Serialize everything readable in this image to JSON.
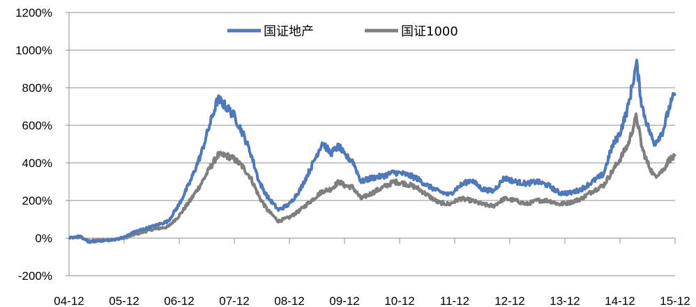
{
  "chart_data": {
    "type": "line",
    "title": "",
    "xlabel": "",
    "ylabel": "",
    "ylim": [
      -200,
      1200
    ],
    "y_ticks": [
      -200,
      0,
      200,
      400,
      600,
      800,
      1000,
      1200
    ],
    "y_tick_labels": [
      "-200%",
      "0%",
      "200%",
      "400%",
      "600%",
      "800%",
      "1000%",
      "1200%"
    ],
    "x_range": [
      0,
      11
    ],
    "x_tick_labels": [
      "04-12",
      "05-12",
      "06-12",
      "07-12",
      "08-12",
      "09-12",
      "10-12",
      "11-12",
      "12-12",
      "13-12",
      "14-12",
      "15-12"
    ],
    "grid": "horizontal",
    "legend_position": "top-center",
    "series": [
      {
        "name": "国证地产",
        "color": "#4F79B8",
        "points": [
          [
            0,
            0
          ],
          [
            0.2,
            10
          ],
          [
            0.35,
            -20
          ],
          [
            0.55,
            -15
          ],
          [
            0.8,
            -10
          ],
          [
            1.0,
            5
          ],
          [
            1.2,
            35
          ],
          [
            1.5,
            60
          ],
          [
            1.8,
            90
          ],
          [
            2.0,
            180
          ],
          [
            2.2,
            300
          ],
          [
            2.4,
            450
          ],
          [
            2.55,
            600
          ],
          [
            2.7,
            740
          ],
          [
            2.85,
            700
          ],
          [
            3.0,
            650
          ],
          [
            3.15,
            560
          ],
          [
            3.3,
            450
          ],
          [
            3.45,
            300
          ],
          [
            3.6,
            220
          ],
          [
            3.8,
            150
          ],
          [
            4.0,
            180
          ],
          [
            4.2,
            260
          ],
          [
            4.4,
            380
          ],
          [
            4.6,
            510
          ],
          [
            4.75,
            450
          ],
          [
            4.9,
            490
          ],
          [
            5.0,
            440
          ],
          [
            5.15,
            410
          ],
          [
            5.3,
            300
          ],
          [
            5.5,
            320
          ],
          [
            5.7,
            330
          ],
          [
            5.9,
            350
          ],
          [
            6.1,
            340
          ],
          [
            6.3,
            320
          ],
          [
            6.5,
            280
          ],
          [
            6.7,
            250
          ],
          [
            6.9,
            230
          ],
          [
            7.1,
            280
          ],
          [
            7.3,
            310
          ],
          [
            7.5,
            260
          ],
          [
            7.7,
            250
          ],
          [
            7.9,
            320
          ],
          [
            8.1,
            300
          ],
          [
            8.3,
            290
          ],
          [
            8.5,
            300
          ],
          [
            8.7,
            280
          ],
          [
            8.9,
            240
          ],
          [
            9.1,
            240
          ],
          [
            9.3,
            260
          ],
          [
            9.5,
            300
          ],
          [
            9.7,
            340
          ],
          [
            9.85,
            480
          ],
          [
            10.0,
            560
          ],
          [
            10.15,
            700
          ],
          [
            10.3,
            930
          ],
          [
            10.4,
            700
          ],
          [
            10.5,
            600
          ],
          [
            10.62,
            500
          ],
          [
            10.78,
            570
          ],
          [
            10.9,
            700
          ],
          [
            11.0,
            770
          ]
        ]
      },
      {
        "name": "国证1000",
        "color": "#7F7F7F",
        "points": [
          [
            0,
            0
          ],
          [
            0.2,
            5
          ],
          [
            0.35,
            -15
          ],
          [
            0.55,
            -12
          ],
          [
            0.8,
            -8
          ],
          [
            1.0,
            0
          ],
          [
            1.2,
            20
          ],
          [
            1.5,
            45
          ],
          [
            1.8,
            60
          ],
          [
            2.0,
            120
          ],
          [
            2.2,
            200
          ],
          [
            2.4,
            290
          ],
          [
            2.55,
            370
          ],
          [
            2.7,
            440
          ],
          [
            2.85,
            440
          ],
          [
            3.0,
            420
          ],
          [
            3.15,
            380
          ],
          [
            3.3,
            320
          ],
          [
            3.45,
            220
          ],
          [
            3.6,
            150
          ],
          [
            3.8,
            90
          ],
          [
            4.0,
            110
          ],
          [
            4.2,
            150
          ],
          [
            4.4,
            200
          ],
          [
            4.6,
            250
          ],
          [
            4.75,
            260
          ],
          [
            4.9,
            300
          ],
          [
            5.0,
            280
          ],
          [
            5.15,
            270
          ],
          [
            5.3,
            210
          ],
          [
            5.5,
            240
          ],
          [
            5.7,
            270
          ],
          [
            5.9,
            300
          ],
          [
            6.1,
            290
          ],
          [
            6.3,
            270
          ],
          [
            6.5,
            230
          ],
          [
            6.7,
            190
          ],
          [
            6.9,
            180
          ],
          [
            7.1,
            210
          ],
          [
            7.3,
            200
          ],
          [
            7.5,
            180
          ],
          [
            7.7,
            170
          ],
          [
            7.9,
            210
          ],
          [
            8.1,
            200
          ],
          [
            8.3,
            180
          ],
          [
            8.5,
            200
          ],
          [
            8.7,
            200
          ],
          [
            8.9,
            180
          ],
          [
            9.1,
            190
          ],
          [
            9.3,
            210
          ],
          [
            9.5,
            250
          ],
          [
            9.7,
            280
          ],
          [
            9.85,
            350
          ],
          [
            10.0,
            420
          ],
          [
            10.15,
            500
          ],
          [
            10.3,
            650
          ],
          [
            10.4,
            480
          ],
          [
            10.5,
            400
          ],
          [
            10.62,
            330
          ],
          [
            10.78,
            360
          ],
          [
            10.9,
            420
          ],
          [
            11.0,
            430
          ]
        ]
      }
    ]
  }
}
